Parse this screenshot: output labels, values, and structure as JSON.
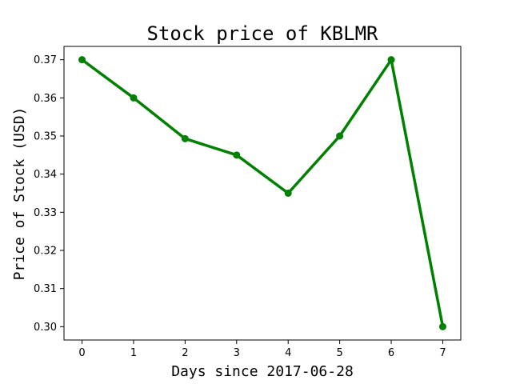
{
  "chart_data": {
    "type": "line",
    "title": "Stock price of KBLMR",
    "xlabel": "Days since 2017-06-28",
    "ylabel": "Price of Stock (USD)",
    "x": [
      0,
      1,
      2,
      3,
      4,
      5,
      6,
      7
    ],
    "series": [
      {
        "values": [
          0.37,
          0.36,
          0.3493,
          0.345,
          0.335,
          0.35,
          0.37,
          0.3
        ],
        "color": "#008000"
      }
    ],
    "xticks": [
      "0",
      "1",
      "2",
      "3",
      "4",
      "5",
      "6",
      "7"
    ],
    "yticks": [
      "0.30",
      "0.31",
      "0.32",
      "0.33",
      "0.34",
      "0.35",
      "0.36",
      "0.37"
    ],
    "xlim": [
      -0.35,
      7.35
    ],
    "ylim": [
      0.2965,
      0.3735
    ],
    "grid": false,
    "marker": "circle"
  }
}
